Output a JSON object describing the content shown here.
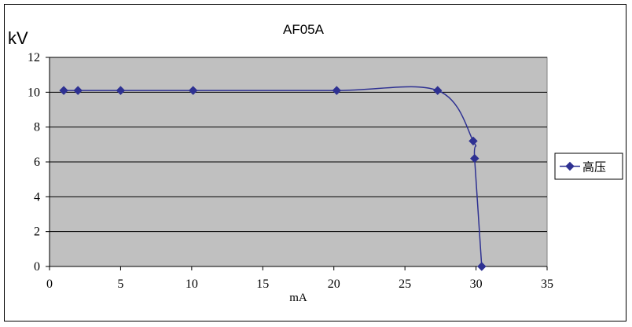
{
  "chart_data": {
    "type": "scatter",
    "title": "AF05A",
    "ylabel": "kV",
    "xlabel": "mA",
    "xlim": [
      0,
      35
    ],
    "ylim": [
      0,
      12
    ],
    "xticks": [
      0,
      5,
      10,
      15,
      20,
      25,
      30,
      35
    ],
    "yticks": [
      0,
      2,
      4,
      6,
      8,
      10,
      12
    ],
    "grid": "horizontal",
    "plot_background": "#c0c0c0",
    "legend_position": "right",
    "series": [
      {
        "name": "高压",
        "color": "#2e3192",
        "marker": "diamond",
        "line": "smoothed",
        "points": [
          {
            "x": 1.0,
            "y": 10.1
          },
          {
            "x": 2.0,
            "y": 10.1
          },
          {
            "x": 5.0,
            "y": 10.1
          },
          {
            "x": 10.1,
            "y": 10.1
          },
          {
            "x": 20.2,
            "y": 10.1
          },
          {
            "x": 27.3,
            "y": 10.1
          },
          {
            "x": 29.8,
            "y": 7.2
          },
          {
            "x": 29.9,
            "y": 6.2
          },
          {
            "x": 30.4,
            "y": 0.0
          }
        ]
      }
    ]
  }
}
